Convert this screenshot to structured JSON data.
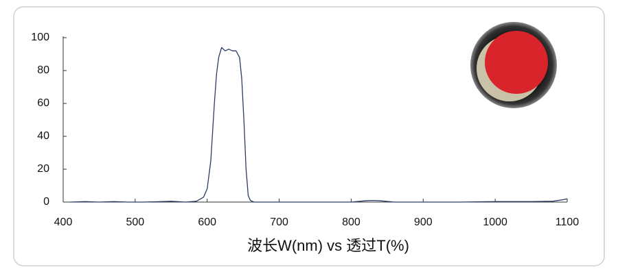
{
  "chart_data": {
    "type": "line",
    "x_label": "波长W(nm) vs 透过T(%)",
    "x": [
      410,
      430,
      450,
      470,
      490,
      510,
      530,
      550,
      570,
      585,
      595,
      600,
      605,
      610,
      613,
      616,
      620,
      625,
      630,
      635,
      640,
      645,
      648,
      651,
      654,
      657,
      660,
      665,
      700,
      750,
      800,
      820,
      830,
      840,
      860,
      900,
      950,
      1000,
      1050,
      1080,
      1095,
      1100
    ],
    "values": [
      0,
      0.3,
      0,
      0.3,
      0,
      0,
      0.2,
      0.5,
      0,
      0.5,
      3,
      8,
      25,
      60,
      78,
      88,
      94,
      92,
      93,
      92,
      92,
      88,
      75,
      50,
      20,
      4,
      1,
      0,
      0,
      0,
      0,
      0.8,
      1,
      0.8,
      0,
      0,
      0,
      0.3,
      0.3,
      0.5,
      1.5,
      2
    ],
    "color": "#2a3a66",
    "xlim": [
      400,
      1100
    ],
    "xticks": [
      400,
      500,
      600,
      700,
      800,
      900,
      1000,
      1100
    ],
    "ylim": [
      0,
      100
    ],
    "yticks": [
      0,
      20,
      40,
      60,
      80,
      100
    ]
  }
}
